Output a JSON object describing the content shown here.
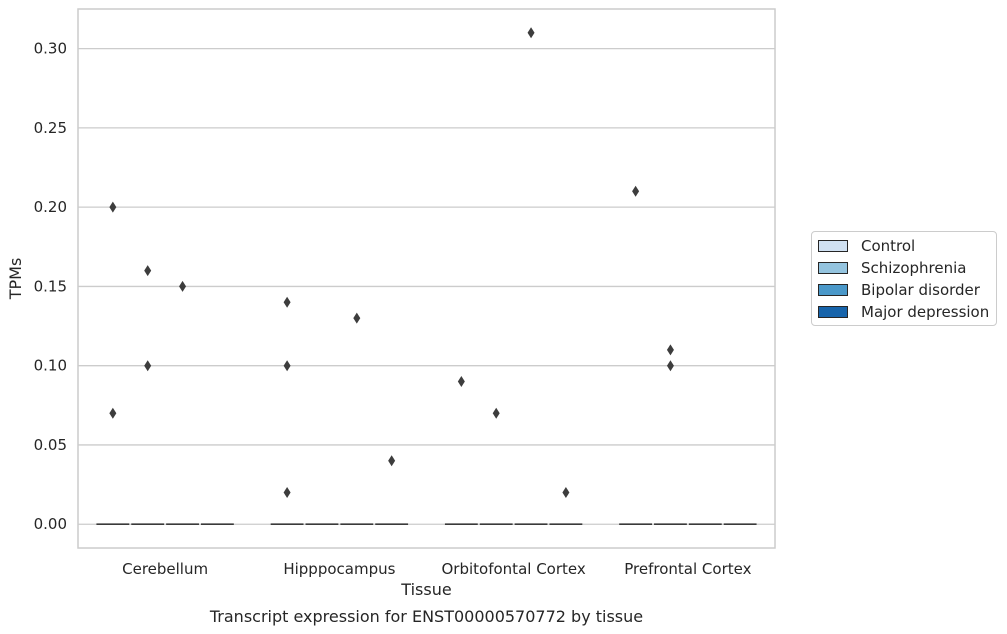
{
  "chart_data": {
    "type": "box",
    "title": "Transcript expression for ENST00000570772 by tissue",
    "xlabel": "Tissue",
    "ylabel": "TPMs",
    "categories": [
      "Cerebellum",
      "Hipppocampus",
      "Orbitofontal Cortex",
      "Prefrontal Cortex"
    ],
    "ylim": [
      -0.015,
      0.325
    ],
    "yticks": [
      0.0,
      0.05,
      0.1,
      0.15,
      0.2,
      0.25,
      0.3
    ],
    "ytick_labels": [
      "0.00",
      "0.05",
      "0.10",
      "0.15",
      "0.20",
      "0.25",
      "0.30"
    ],
    "grid": true,
    "legend_position": "right",
    "series": [
      {
        "name": "Control",
        "color": "#d0e1f2",
        "median": 0.0,
        "outliers": [
          [
            0.2,
            0.07
          ],
          [
            0.14,
            0.1,
            0.02
          ],
          [
            0.09
          ],
          [
            0.21
          ]
        ]
      },
      {
        "name": "Schizophrenia",
        "color": "#94c4df",
        "median": 0.0,
        "outliers": [
          [
            0.16,
            0.1
          ],
          [],
          [
            0.07
          ],
          [
            0.11,
            0.1
          ]
        ]
      },
      {
        "name": "Bipolar disorder",
        "color": "#4a98c9",
        "median": 0.0,
        "outliers": [
          [
            0.15
          ],
          [
            0.13
          ],
          [
            0.31
          ],
          []
        ]
      },
      {
        "name": "Major depression",
        "color": "#1764ab",
        "median": 0.0,
        "outliers": [
          [],
          [
            0.04
          ],
          [
            0.02
          ],
          []
        ]
      }
    ]
  }
}
